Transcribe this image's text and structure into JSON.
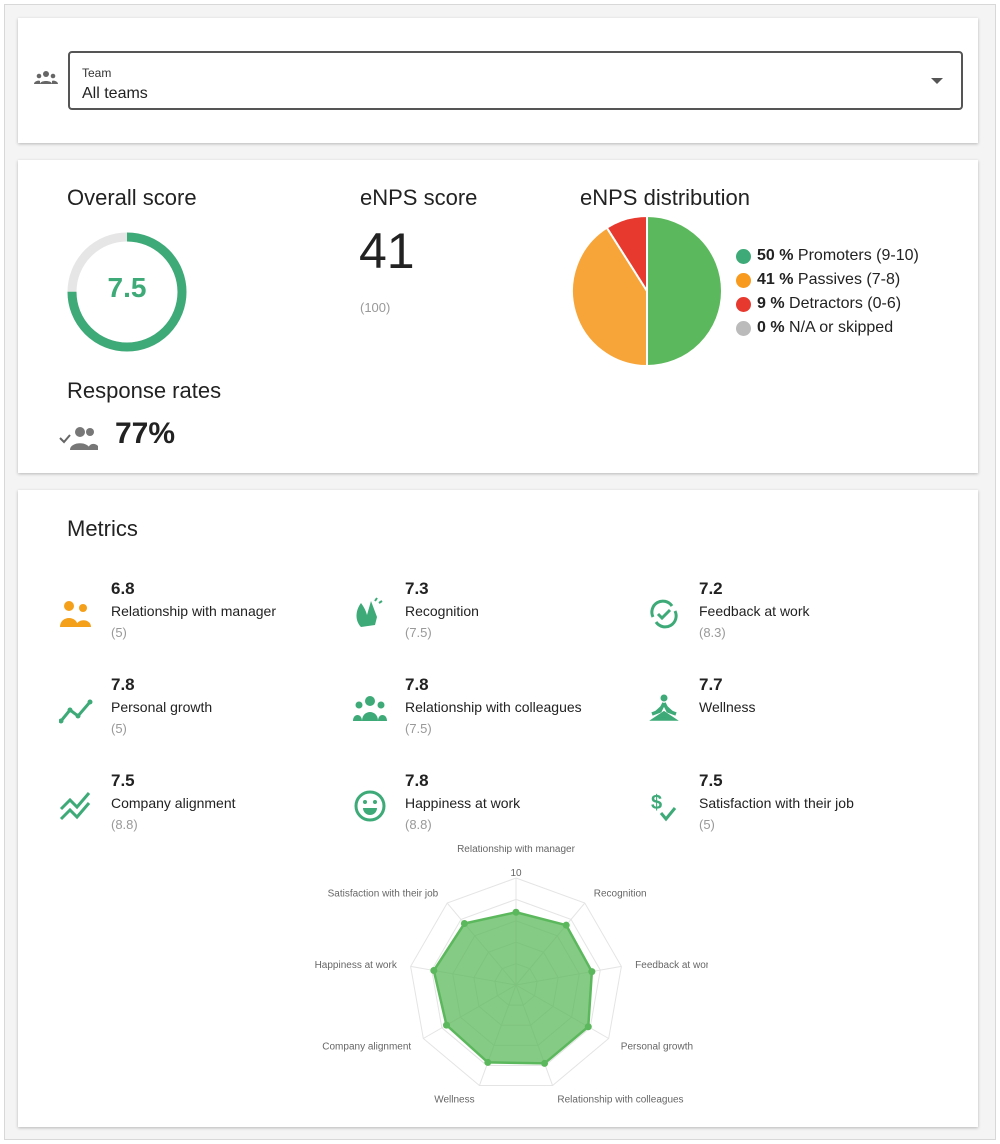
{
  "filter": {
    "label": "Team",
    "value": "All teams",
    "icon": "team-icon"
  },
  "overall": {
    "title": "Overall score",
    "value": "7.5",
    "fraction": 0.75
  },
  "enps": {
    "title": "eNPS score",
    "value": "41",
    "previous": "(100)"
  },
  "distribution": {
    "title": "eNPS distribution",
    "items": [
      {
        "pct": "50 %",
        "label": "Promoters (9-10)",
        "value": 50,
        "color": "#5cb85c",
        "dot": "#3daa78"
      },
      {
        "pct": "41 %",
        "label": "Passives (7-8)",
        "value": 41,
        "color": "#f7a539",
        "dot": "#f79a1e"
      },
      {
        "pct": "9 %",
        "label": "Detractors (0-6)",
        "value": 9,
        "color": "#e8392f",
        "dot": "#e8392f"
      },
      {
        "pct": "0 %",
        "label": "N/A or skipped",
        "value": 0,
        "color": "#bbbbbb",
        "dot": "#bbbbbb"
      }
    ]
  },
  "response": {
    "title": "Response rates",
    "value": "77%"
  },
  "metrics": {
    "title": "Metrics",
    "items": [
      {
        "value": "6.8",
        "name": "Relationship with manager",
        "prev": "(5)",
        "icon": "people-icon",
        "color": "#f5a01a"
      },
      {
        "value": "7.3",
        "name": "Recognition",
        "prev": "(7.5)",
        "icon": "clapping-hands-icon",
        "color": "#3daa78"
      },
      {
        "value": "7.2",
        "name": "Feedback at work",
        "prev": "(8.3)",
        "icon": "refresh-check-icon",
        "color": "#3daa78"
      },
      {
        "value": "7.8",
        "name": "Personal growth",
        "prev": "(5)",
        "icon": "trend-up-icon",
        "color": "#3daa78"
      },
      {
        "value": "7.8",
        "name": "Relationship with colleagues",
        "prev": "(7.5)",
        "icon": "group-icon",
        "color": "#3daa78"
      },
      {
        "value": "7.7",
        "name": "Wellness",
        "prev": "",
        "icon": "meditation-icon",
        "color": "#3daa78"
      },
      {
        "value": "7.5",
        "name": "Company alignment",
        "prev": "(8.8)",
        "icon": "zigzag-icon",
        "color": "#3daa78"
      },
      {
        "value": "7.8",
        "name": "Happiness at work",
        "prev": "(8.8)",
        "icon": "smiley-icon",
        "color": "#3daa78"
      },
      {
        "value": "7.5",
        "name": "Satisfaction with their job",
        "prev": "(5)",
        "icon": "dollar-check-icon",
        "color": "#3daa78"
      }
    ]
  },
  "chart_data": {
    "type": "radar",
    "max_label": "10",
    "range": [
      0,
      10
    ],
    "axes": [
      "Relationship with manager",
      "Recognition",
      "Feedback at work",
      "Personal growth",
      "Relationship with colleagues",
      "Wellness",
      "Company alignment",
      "Happiness at work",
      "Satisfaction with their job"
    ],
    "values": [
      6.8,
      7.3,
      7.2,
      7.8,
      7.8,
      7.7,
      7.5,
      7.8,
      7.5
    ],
    "color": "#5cb85c"
  }
}
